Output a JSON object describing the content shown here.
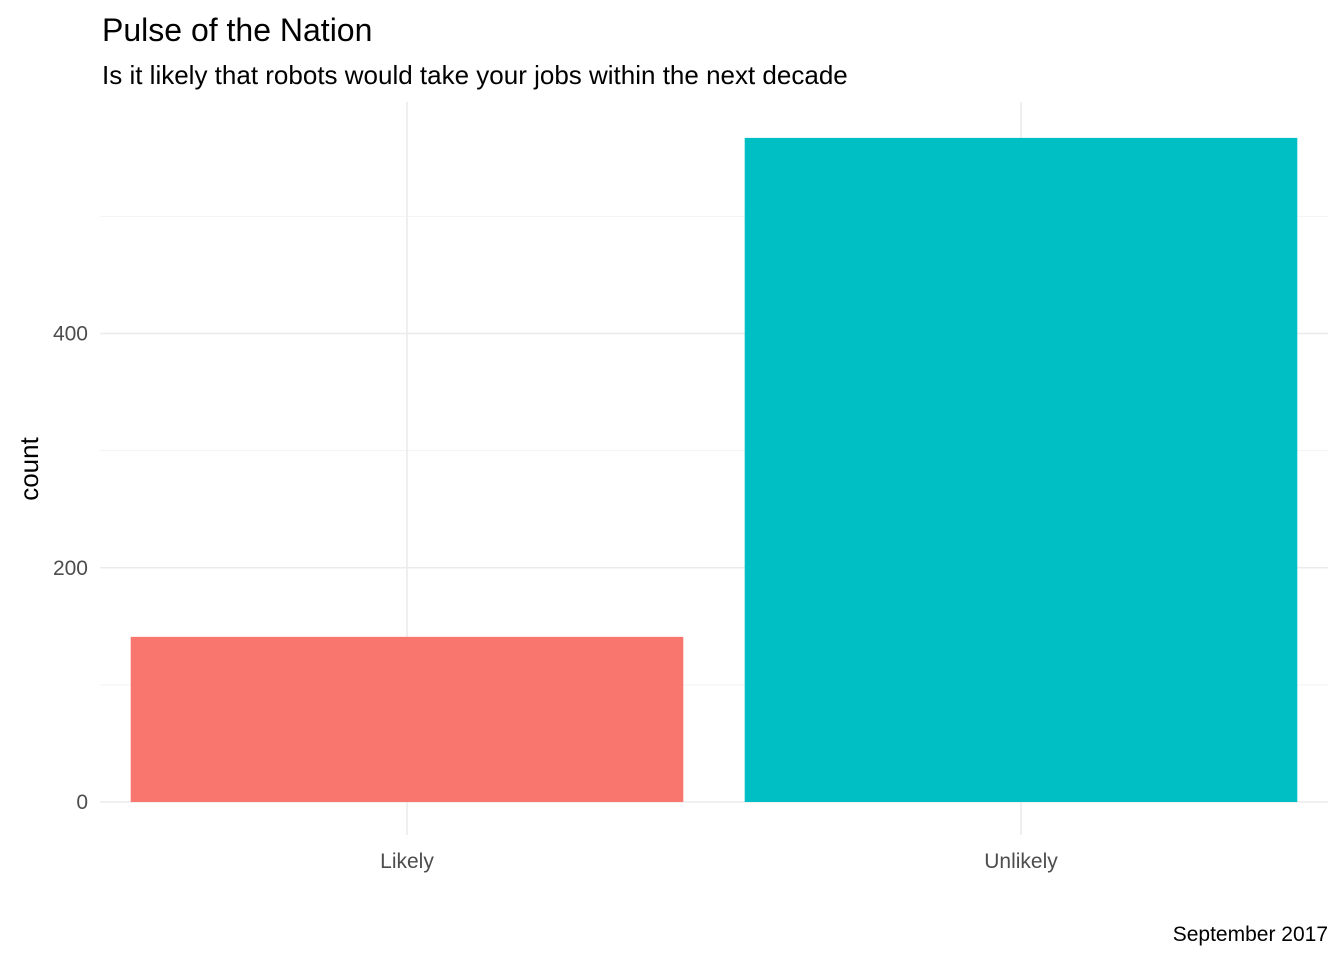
{
  "chart_data": {
    "type": "bar",
    "title": "Pulse of the Nation",
    "subtitle": "Is it likely that robots would take your jobs within the next decade",
    "xlabel": "",
    "ylabel": "count",
    "caption": "September 2017",
    "categories": [
      "Likely",
      "Unlikely"
    ],
    "values": [
      141,
      567
    ],
    "colors": [
      "#F8766D",
      "#00BFC4"
    ],
    "ylim": [
      0,
      595
    ],
    "y_ticks": [
      0,
      200,
      400
    ],
    "y_tick_labels": [
      "0",
      "200",
      "400"
    ],
    "y_minor_ticks": [
      100,
      300,
      500
    ],
    "grid": true,
    "legend": "none"
  }
}
